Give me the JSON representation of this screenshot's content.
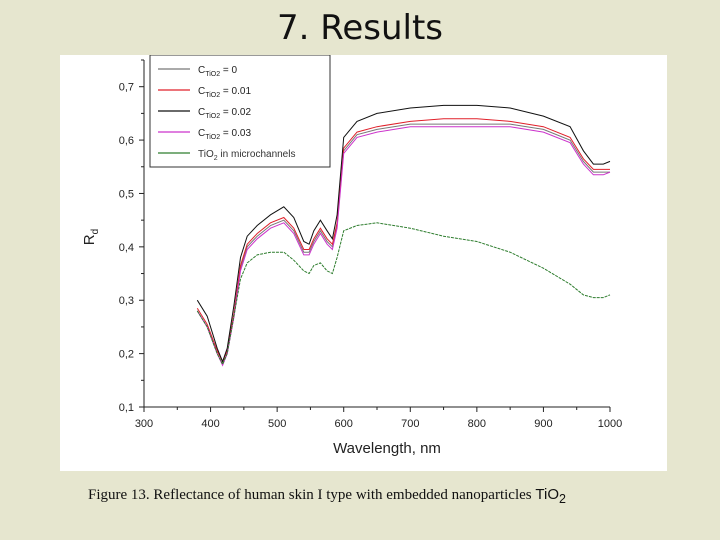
{
  "slide": {
    "title": "7. Results",
    "caption_text": "Figure 13. Reflectance of human skin I type with embedded  nanoparticles ",
    "caption_formula": "TiO",
    "caption_subscript": "2"
  },
  "chart_data": {
    "type": "line",
    "xlabel": "Wavelength, nm",
    "ylabel": "R",
    "ylabel_subscript": "d",
    "xlim": [
      300,
      1000
    ],
    "ylim": [
      0.1,
      0.75
    ],
    "xticks": [
      "300",
      "400",
      "500",
      "600",
      "700",
      "800",
      "900",
      "1000"
    ],
    "yticks": [
      "0,1",
      "0,2",
      "0,3",
      "0,4",
      "0,5",
      "0,6",
      "0,7"
    ],
    "grid": false,
    "legend_position": "top-left",
    "series": [
      {
        "name": "C = 0",
        "legend_main": "C",
        "legend_sub": "TiO2",
        "legend_tail": " = 0",
        "color": "#777777",
        "x": [
          380,
          395,
          410,
          418,
          425,
          435,
          445,
          455,
          470,
          490,
          510,
          525,
          540,
          548,
          555,
          565,
          575,
          583,
          590,
          600,
          620,
          650,
          700,
          750,
          800,
          850,
          900,
          940,
          960,
          975,
          990,
          1000
        ],
        "y": [
          0.28,
          0.25,
          0.2,
          0.18,
          0.2,
          0.27,
          0.36,
          0.4,
          0.42,
          0.44,
          0.45,
          0.43,
          0.39,
          0.39,
          0.41,
          0.43,
          0.41,
          0.4,
          0.44,
          0.58,
          0.61,
          0.62,
          0.63,
          0.63,
          0.63,
          0.63,
          0.62,
          0.6,
          0.56,
          0.54,
          0.54,
          0.54
        ]
      },
      {
        "name": "C = 0.01",
        "legend_main": "C",
        "legend_sub": "TiO2",
        "legend_tail": " = 0.01",
        "color": "#e0202a",
        "x": [
          380,
          395,
          410,
          418,
          425,
          435,
          445,
          455,
          470,
          490,
          510,
          525,
          540,
          548,
          555,
          565,
          575,
          583,
          590,
          600,
          620,
          650,
          700,
          750,
          800,
          850,
          900,
          940,
          960,
          975,
          990,
          1000
        ],
        "y": [
          0.285,
          0.255,
          0.205,
          0.185,
          0.205,
          0.275,
          0.365,
          0.405,
          0.425,
          0.445,
          0.455,
          0.435,
          0.395,
          0.395,
          0.415,
          0.435,
          0.415,
          0.405,
          0.445,
          0.585,
          0.615,
          0.625,
          0.635,
          0.64,
          0.64,
          0.635,
          0.625,
          0.605,
          0.565,
          0.545,
          0.545,
          0.545
        ]
      },
      {
        "name": "C = 0.02",
        "legend_main": "C",
        "legend_sub": "TiO2",
        "legend_tail": " = 0.02",
        "color": "#111111",
        "x": [
          380,
          395,
          410,
          418,
          425,
          435,
          445,
          455,
          470,
          490,
          510,
          525,
          540,
          548,
          555,
          565,
          575,
          583,
          590,
          600,
          620,
          650,
          700,
          750,
          800,
          850,
          900,
          940,
          960,
          975,
          990,
          1000
        ],
        "y": [
          0.3,
          0.27,
          0.21,
          0.185,
          0.21,
          0.29,
          0.38,
          0.42,
          0.44,
          0.46,
          0.475,
          0.455,
          0.41,
          0.405,
          0.43,
          0.45,
          0.43,
          0.415,
          0.46,
          0.605,
          0.635,
          0.65,
          0.66,
          0.665,
          0.665,
          0.66,
          0.645,
          0.625,
          0.58,
          0.555,
          0.555,
          0.56
        ]
      },
      {
        "name": "C = 0.03",
        "legend_main": "C",
        "legend_sub": "TiO2",
        "legend_tail": " = 0.03",
        "color": "#cc33cc",
        "x": [
          380,
          395,
          410,
          418,
          425,
          435,
          445,
          455,
          470,
          490,
          510,
          525,
          540,
          548,
          555,
          565,
          575,
          583,
          590,
          600,
          620,
          650,
          700,
          750,
          800,
          850,
          900,
          940,
          960,
          975,
          990,
          1000
        ],
        "y": [
          0.28,
          0.25,
          0.2,
          0.178,
          0.2,
          0.268,
          0.355,
          0.395,
          0.415,
          0.435,
          0.445,
          0.425,
          0.385,
          0.385,
          0.405,
          0.425,
          0.405,
          0.395,
          0.435,
          0.575,
          0.605,
          0.615,
          0.625,
          0.625,
          0.625,
          0.625,
          0.615,
          0.595,
          0.555,
          0.535,
          0.535,
          0.54
        ]
      },
      {
        "name": "TiO2 in microchannels",
        "legend_main": "TiO",
        "legend_sub": "2",
        "legend_tail": " in microchannels",
        "color": "#2e7d2e",
        "x": [
          380,
          395,
          410,
          418,
          425,
          435,
          445,
          455,
          470,
          490,
          510,
          525,
          540,
          548,
          555,
          565,
          575,
          583,
          590,
          600,
          620,
          650,
          700,
          750,
          800,
          850,
          900,
          940,
          960,
          975,
          990,
          1000
        ],
        "y": [
          0.28,
          0.25,
          0.2,
          0.18,
          0.2,
          0.27,
          0.34,
          0.37,
          0.385,
          0.39,
          0.39,
          0.375,
          0.355,
          0.35,
          0.365,
          0.37,
          0.355,
          0.35,
          0.38,
          0.43,
          0.44,
          0.445,
          0.435,
          0.42,
          0.41,
          0.39,
          0.36,
          0.33,
          0.31,
          0.305,
          0.305,
          0.31
        ]
      }
    ]
  }
}
